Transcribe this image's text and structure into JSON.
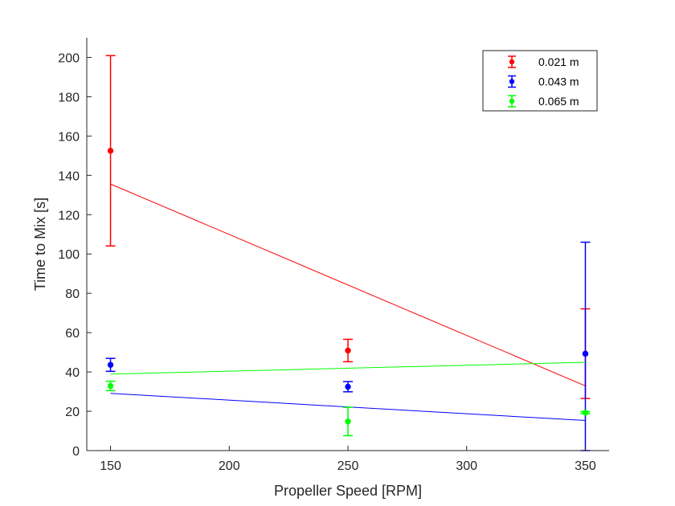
{
  "chart_data": {
    "type": "scatter",
    "title": "",
    "xlabel": "Propeller Speed [RPM]",
    "ylabel": "Time to Mix [s]",
    "xlim": [
      140,
      360
    ],
    "ylim": [
      0,
      210
    ],
    "xticks": [
      150,
      200,
      250,
      300,
      350
    ],
    "yticks": [
      0,
      20,
      40,
      60,
      80,
      100,
      120,
      140,
      160,
      180,
      200
    ],
    "grid": false,
    "legend_position": "top-right",
    "series": [
      {
        "name": "0.021 m",
        "color": "#ff0000",
        "x": [
          150,
          250,
          350
        ],
        "y": [
          152.5,
          50.9,
          49.3
        ],
        "err_low": [
          104.1,
          45.2,
          26.5
        ],
        "err_high": [
          200.9,
          56.6,
          72.1
        ],
        "fit": {
          "x": [
            150,
            350
          ],
          "y": [
            135.6,
            32.9
          ]
        }
      },
      {
        "name": "0.043 m",
        "color": "#0000ff",
        "x": [
          150,
          250,
          350
        ],
        "y": [
          43.6,
          32.5,
          49.3
        ],
        "err_low": [
          40.3,
          29.9,
          0
        ],
        "err_high": [
          46.9,
          35.1,
          106.0
        ],
        "fit": {
          "x": [
            150,
            350
          ],
          "y": [
            29.1,
            15.3
          ]
        }
      },
      {
        "name": "0.065 m",
        "color": "#00ff00",
        "x": [
          150,
          250,
          350
        ],
        "y": [
          32.9,
          14.8,
          19.3
        ],
        "err_low": [
          30.5,
          7.6,
          18.8
        ],
        "err_high": [
          35.3,
          22.0,
          19.8
        ],
        "fit": {
          "x": [
            150,
            350
          ],
          "y": [
            38.9,
            44.9
          ]
        }
      }
    ]
  }
}
